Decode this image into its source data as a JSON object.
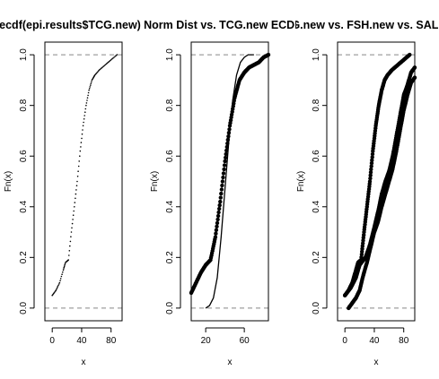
{
  "chart_data": [
    {
      "type": "line",
      "title": "ecdf(epi.results$TCG.new)",
      "xlabel": "x",
      "ylabel": "Fn(x)",
      "xlim": [
        -10,
        95
      ],
      "ylim": [
        -0.05,
        1.05
      ],
      "xticks": [
        "0",
        "40",
        "80"
      ],
      "yticks": [
        "0.0",
        "0.2",
        "0.4",
        "0.6",
        "0.8",
        "1.0"
      ],
      "reference_lines": [
        0,
        1
      ],
      "series": [
        {
          "style": "step-points",
          "points": [
            [
              0,
              0.05
            ],
            [
              5,
              0.07
            ],
            [
              10,
              0.1
            ],
            [
              15,
              0.15
            ],
            [
              18,
              0.18
            ],
            [
              22,
              0.19
            ],
            [
              26,
              0.3
            ],
            [
              30,
              0.4
            ],
            [
              34,
              0.5
            ],
            [
              38,
              0.62
            ],
            [
              42,
              0.72
            ],
            [
              46,
              0.8
            ],
            [
              50,
              0.86
            ],
            [
              54,
              0.9
            ],
            [
              58,
              0.92
            ],
            [
              64,
              0.94
            ],
            [
              72,
              0.96
            ],
            [
              80,
              0.98
            ],
            [
              88,
              1.0
            ]
          ]
        }
      ]
    },
    {
      "type": "line",
      "title": "Norm Dist vs. TCG.new ECDF",
      "xlabel": "x",
      "ylabel": "Fn(x)",
      "xlim": [
        5,
        85
      ],
      "ylim": [
        -0.05,
        1.05
      ],
      "xticks": [
        "20",
        "60"
      ],
      "yticks": [
        "0.0",
        "0.2",
        "0.4",
        "0.6",
        "0.8",
        "1.0"
      ],
      "reference_lines": [
        0,
        1
      ],
      "series": [
        {
          "style": "points",
          "points": [
            [
              5,
              0.06
            ],
            [
              10,
              0.1
            ],
            [
              15,
              0.14
            ],
            [
              20,
              0.17
            ],
            [
              25,
              0.19
            ],
            [
              30,
              0.28
            ],
            [
              35,
              0.42
            ],
            [
              40,
              0.58
            ],
            [
              45,
              0.72
            ],
            [
              50,
              0.83
            ],
            [
              55,
              0.9
            ],
            [
              60,
              0.93
            ],
            [
              65,
              0.95
            ],
            [
              70,
              0.96
            ],
            [
              75,
              0.97
            ],
            [
              80,
              0.99
            ],
            [
              85,
              1.0
            ]
          ]
        },
        {
          "style": "line",
          "points": [
            [
              20,
              0.0
            ],
            [
              24,
              0.01
            ],
            [
              28,
              0.04
            ],
            [
              32,
              0.12
            ],
            [
              36,
              0.28
            ],
            [
              40,
              0.47
            ],
            [
              44,
              0.66
            ],
            [
              48,
              0.82
            ],
            [
              52,
              0.92
            ],
            [
              56,
              0.97
            ],
            [
              60,
              0.99
            ],
            [
              64,
              1.0
            ],
            [
              70,
              1.0
            ]
          ]
        }
      ]
    },
    {
      "type": "line",
      "title": "TCG.new vs. FSH.new vs. SAL.new",
      "xlabel": "x",
      "ylabel": "Fn(x)",
      "xlim": [
        -10,
        95
      ],
      "ylim": [
        -0.05,
        1.05
      ],
      "xticks": [
        "0",
        "40",
        "80"
      ],
      "yticks": [
        "0.0",
        "0.2",
        "0.4",
        "0.6",
        "0.8",
        "1.0"
      ],
      "reference_lines": [
        0,
        1
      ],
      "series": [
        {
          "style": "points",
          "points": [
            [
              0,
              0.05
            ],
            [
              5,
              0.07
            ],
            [
              10,
              0.1
            ],
            [
              15,
              0.15
            ],
            [
              18,
              0.18
            ],
            [
              22,
              0.19
            ],
            [
              26,
              0.3
            ],
            [
              30,
              0.4
            ],
            [
              34,
              0.5
            ],
            [
              38,
              0.62
            ],
            [
              42,
              0.72
            ],
            [
              46,
              0.8
            ],
            [
              50,
              0.86
            ],
            [
              54,
              0.9
            ],
            [
              58,
              0.92
            ],
            [
              64,
              0.94
            ],
            [
              72,
              0.96
            ],
            [
              80,
              0.98
            ],
            [
              88,
              1.0
            ]
          ]
        },
        {
          "style": "points",
          "points": [
            [
              0,
              0.05
            ],
            [
              8,
              0.08
            ],
            [
              15,
              0.12
            ],
            [
              20,
              0.17
            ],
            [
              28,
              0.2
            ],
            [
              34,
              0.25
            ],
            [
              40,
              0.32
            ],
            [
              45,
              0.38
            ],
            [
              50,
              0.45
            ],
            [
              55,
              0.5
            ],
            [
              60,
              0.54
            ],
            [
              65,
              0.6
            ],
            [
              70,
              0.68
            ],
            [
              75,
              0.76
            ],
            [
              80,
              0.84
            ],
            [
              85,
              0.88
            ],
            [
              90,
              0.93
            ],
            [
              95,
              0.95
            ]
          ]
        },
        {
          "style": "points",
          "points": [
            [
              5,
              0.0
            ],
            [
              10,
              0.02
            ],
            [
              15,
              0.04
            ],
            [
              20,
              0.07
            ],
            [
              25,
              0.13
            ],
            [
              30,
              0.18
            ],
            [
              35,
              0.24
            ],
            [
              40,
              0.3
            ],
            [
              45,
              0.34
            ],
            [
              50,
              0.4
            ],
            [
              55,
              0.45
            ],
            [
              60,
              0.5
            ],
            [
              65,
              0.55
            ],
            [
              70,
              0.62
            ],
            [
              75,
              0.7
            ],
            [
              80,
              0.78
            ],
            [
              85,
              0.84
            ],
            [
              90,
              0.89
            ],
            [
              95,
              0.91
            ]
          ]
        }
      ]
    }
  ]
}
